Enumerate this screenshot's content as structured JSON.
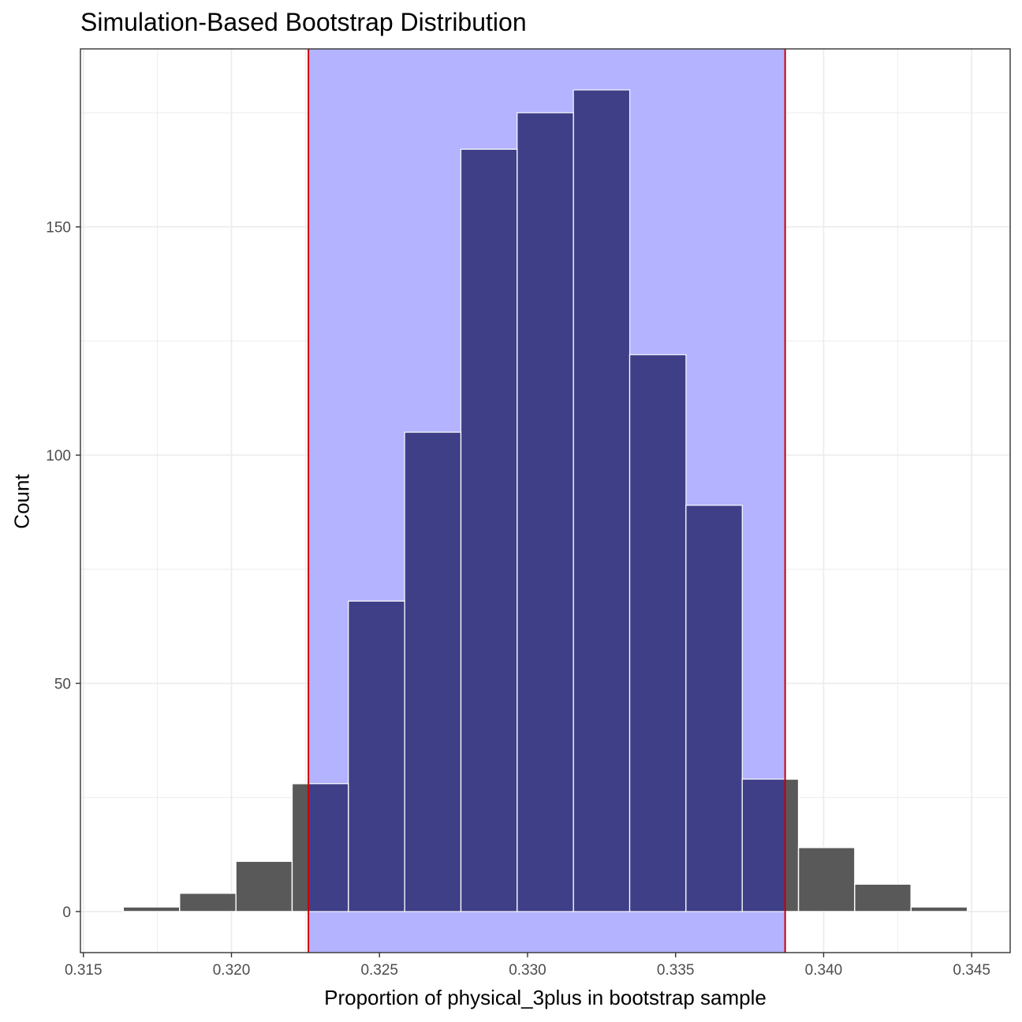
{
  "chart_data": {
    "type": "bar",
    "title": "Simulation-Based Bootstrap Distribution",
    "xlabel": "Proportion of physical_3plus in bootstrap sample",
    "ylabel": "Count",
    "xlim": [
      0.3149,
      0.3463
    ],
    "ylim": [
      -9,
      189
    ],
    "xticks": [
      0.315,
      0.32,
      0.325,
      0.33,
      0.335,
      0.34,
      0.345
    ],
    "xtick_labels": [
      "0.315",
      "0.320",
      "0.325",
      "0.330",
      "0.335",
      "0.340",
      "0.345"
    ],
    "yticks": [
      0,
      50,
      100,
      150
    ],
    "ytick_labels": [
      "0",
      "50",
      "100",
      "150"
    ],
    "bin_width": 0.0019,
    "bin_centers": [
      0.3173,
      0.3192,
      0.3211,
      0.323,
      0.3249,
      0.3268,
      0.3287,
      0.3306,
      0.3325,
      0.3344,
      0.3363,
      0.3382,
      0.3401,
      0.342,
      0.3439
    ],
    "counts": [
      1,
      4,
      11,
      28,
      68,
      105,
      167,
      175,
      180,
      122,
      89,
      29,
      14,
      6,
      1
    ],
    "confidence_interval": [
      0.3226,
      0.3387
    ],
    "grid": true,
    "colors": {
      "bar_outside": "#595959",
      "bar_inside": "#3f3f88",
      "ci_shade": "#b3b3ff",
      "ci_line": "#cc0000",
      "grid": "#ebebeb"
    }
  }
}
